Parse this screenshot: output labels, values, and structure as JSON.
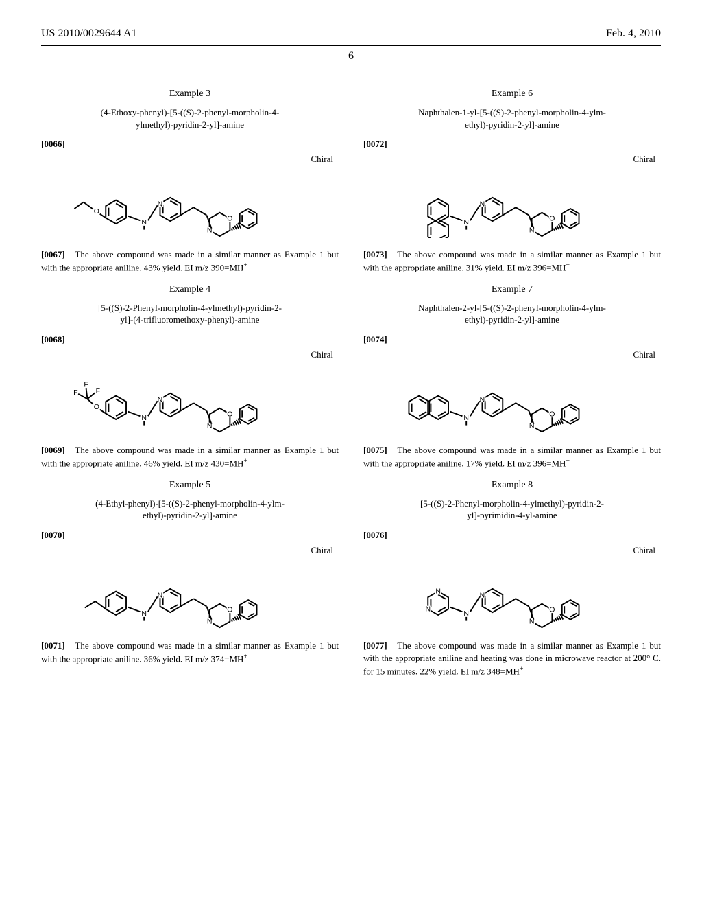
{
  "header": {
    "pub_number": "US 2010/0029644 A1",
    "pub_date": "Feb. 4, 2010",
    "page_number": "6"
  },
  "style": {
    "font_family": "Times New Roman",
    "body_fontsize_pt": 13,
    "heading_fontsize_pt": 14,
    "header_fontsize_pt": 16,
    "text_color": "#000000",
    "bg_color": "#ffffff",
    "line_color": "#000000",
    "line_width": 2,
    "bond_gap": 3,
    "wedge_color": "#000000",
    "atom_label_fontsize": 11
  },
  "left": {
    "examples": [
      {
        "heading": "Example 3",
        "name_line1": "(4-Ethoxy-phenyl)-[5-((S)-2-phenyl-morpholin-4-",
        "name_line2": "ylmethyl)-pyridin-2-yl]-amine",
        "struct_para": "[0066]",
        "chiral": "Chiral",
        "structure_id": "ex3",
        "desc_para": "[0067]",
        "desc_text": "The above compound was made in a similar manner as Example 1 but with the appropriate aniline. 43% yield. EI m/z 390=MH",
        "yield_pct": 43,
        "mz": 390
      },
      {
        "heading": "Example 4",
        "name_line1": "[5-((S)-2-Phenyl-morpholin-4-ylmethyl)-pyridin-2-",
        "name_line2": "yl]-(4-trifluoromethoxy-phenyl)-amine",
        "struct_para": "[0068]",
        "chiral": "Chiral",
        "structure_id": "ex4",
        "desc_para": "[0069]",
        "desc_text": "The above compound was made in a similar manner as Example 1 but with the appropriate aniline. 46% yield. EI m/z 430=MH",
        "yield_pct": 46,
        "mz": 430
      },
      {
        "heading": "Example 5",
        "name_line1": "(4-Ethyl-phenyl)-[5-((S)-2-phenyl-morpholin-4-ylm-",
        "name_line2": "ethyl)-pyridin-2-yl]-amine",
        "struct_para": "[0070]",
        "chiral": "Chiral",
        "structure_id": "ex5",
        "desc_para": "[0071]",
        "desc_text": "The above compound was made in a similar manner as Example 1 but with the appropriate aniline. 36% yield. EI m/z 374=MH",
        "yield_pct": 36,
        "mz": 374
      }
    ]
  },
  "right": {
    "examples": [
      {
        "heading": "Example 6",
        "name_line1": "Naphthalen-1-yl-[5-((S)-2-phenyl-morpholin-4-ylm-",
        "name_line2": "ethyl)-pyridin-2-yl]-amine",
        "struct_para": "[0072]",
        "chiral": "Chiral",
        "structure_id": "ex6",
        "desc_para": "[0073]",
        "desc_text": "The above compound was made in a similar manner as Example 1 but with the appropriate aniline. 31% yield. EI m/z 396=MH",
        "yield_pct": 31,
        "mz": 396
      },
      {
        "heading": "Example 7",
        "name_line1": "Naphthalen-2-yl-[5-((S)-2-phenyl-morpholin-4-ylm-",
        "name_line2": "ethyl)-pyridin-2-yl]-amine",
        "struct_para": "[0074]",
        "chiral": "Chiral",
        "structure_id": "ex7",
        "desc_para": "[0075]",
        "desc_text": "The above compound was made in a similar manner as Example 1 but with the appropriate aniline. 17% yield. EI m/z 396=MH",
        "yield_pct": 17,
        "mz": 396
      },
      {
        "heading": "Example 8",
        "name_line1": "[5-((S)-2-Phenyl-morpholin-4-ylmethyl)-pyridin-2-",
        "name_line2": "yl]-pyrimidin-4-yl-amine",
        "struct_para": "[0076]",
        "chiral": "Chiral",
        "structure_id": "ex8",
        "desc_para": "[0077]",
        "desc_text": "The above compound was made in a similar manner as Example 1 but with the appropriate aniline and heating was done in microwave reactor at 200° C. for 15 minutes. 22% yield. EI m/z 348=MH",
        "yield_pct": 22,
        "mz": 348
      }
    ]
  },
  "structures": {
    "type": "chemical-skeletal-formula",
    "common_core": {
      "description": "pyridin-2-yl-amine linked via CH2 to (S)-2-phenyl-morpholine",
      "morpholine": "6-membered ring with N and O, phenyl wedge at 2-position",
      "pyridine_labels": [
        "N",
        "N"
      ],
      "linker_NH_label": "N"
    },
    "variants": {
      "ex3": {
        "aryl": "4-ethoxyphenyl",
        "labels": [
          "O"
        ],
        "substituent": "OCH2CH3"
      },
      "ex4": {
        "aryl": "4-(trifluoromethoxy)phenyl",
        "labels": [
          "O",
          "F",
          "F",
          "F"
        ],
        "substituent": "OCF3"
      },
      "ex5": {
        "aryl": "4-ethylphenyl",
        "labels": [],
        "substituent": "CH2CH3"
      },
      "ex6": {
        "aryl": "naphthalen-1-yl",
        "labels": [],
        "fused_rings": 2
      },
      "ex7": {
        "aryl": "naphthalen-2-yl",
        "labels": [],
        "fused_rings": 2
      },
      "ex8": {
        "aryl": "pyrimidin-4-yl",
        "labels": [
          "N",
          "N"
        ],
        "ring_nitrogens": 2
      }
    }
  }
}
